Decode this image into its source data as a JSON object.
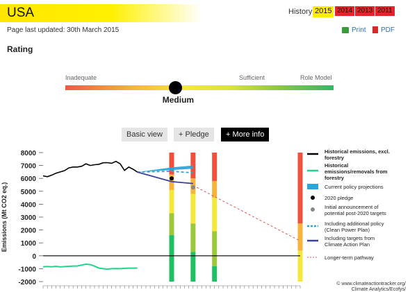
{
  "header": {
    "country": "USA",
    "updated": "Page last updated: 30th March 2015",
    "history_label": "History:",
    "years": [
      "2015",
      "2014",
      "2013",
      "2011"
    ],
    "print_label": "Print",
    "pdf_label": "PDF"
  },
  "rating": {
    "heading": "Rating",
    "scale_labels": [
      "Inadequate",
      "Sufficient",
      "Role Model"
    ],
    "value": "Medium",
    "level_fraction": 0.41
  },
  "buttons": [
    "Basic view",
    "+ Pledge",
    "+ More info"
  ],
  "chart_data": {
    "type": "line",
    "ylabel": "Emissions (Mt CO2 eq.)",
    "ylim": [
      -2000,
      8000
    ],
    "y_ticks": [
      "8000",
      "7000",
      "6000",
      "5000",
      "4000",
      "3000",
      "2000",
      "1000",
      "0",
      "-1000",
      "-2000"
    ],
    "x_range": [
      1990,
      2050
    ],
    "series": [
      {
        "name": "Historical emissions, excl. forestry",
        "color": "#000000",
        "x": [
          1990,
          1991,
          1992,
          1993,
          1994,
          1995,
          1996,
          1997,
          1998,
          1999,
          2000,
          2001,
          2002,
          2003,
          2004,
          2005,
          2006,
          2007,
          2008,
          2009,
          2010,
          2011,
          2012
        ],
        "values": [
          6200,
          6130,
          6250,
          6400,
          6500,
          6600,
          6810,
          6880,
          6880,
          6940,
          7130,
          7000,
          7060,
          7090,
          7210,
          7220,
          7170,
          7320,
          7130,
          6620,
          6880,
          6710,
          6490
        ]
      },
      {
        "name": "Historical emissions/removals from forestry",
        "color": "#1fd58a",
        "x": [
          1990,
          1991,
          1992,
          1993,
          1994,
          1995,
          1996,
          1997,
          1998,
          1999,
          2000,
          2001,
          2002,
          2003,
          2004,
          2005,
          2006,
          2007,
          2008,
          2009,
          2010,
          2011,
          2012
        ],
        "values": [
          -850,
          -830,
          -850,
          -820,
          -860,
          -840,
          -820,
          -800,
          -790,
          -720,
          -650,
          -680,
          -800,
          -950,
          -1000,
          -1030,
          -1000,
          -990,
          -1000,
          -970,
          -960,
          -960,
          -950
        ]
      },
      {
        "name": "Current policy projections",
        "color": "#2aa7d9",
        "x": [
          2012,
          2020,
          2025
        ],
        "upper": [
          6490,
          6850,
          7000
        ],
        "lower": [
          6490,
          6650,
          6750
        ]
      },
      {
        "name": "Including additional policy (Clean Power Plan)",
        "color": "#2aa7d9",
        "x": [
          2012,
          2020,
          2025
        ],
        "values": [
          6490,
          6550,
          6430
        ]
      },
      {
        "name": "Including targets from Climate Action Plan",
        "color": "#3a3fa0",
        "x": [
          2012,
          2020,
          2025
        ],
        "values": [
          6490,
          5750,
          5600
        ]
      },
      {
        "name": "Longer-term pathway",
        "color": "#d9534f",
        "x": [
          2025,
          2050
        ],
        "values": [
          5450,
          1150
        ]
      }
    ],
    "points": [
      {
        "name": "2020 pledge",
        "color": "#000000",
        "x": 2020,
        "y": 6000
      },
      {
        "name": "Initial announcement of potential post-2020 targets",
        "color": "#888888",
        "x": 2025,
        "y": 5300
      }
    ],
    "rating_columns": [
      {
        "x": 2020,
        "bands": [
          {
            "from": 8000,
            "to": 6300,
            "color": "#f0503c"
          },
          {
            "from": 6300,
            "to": 5100,
            "color": "#f7b43a"
          },
          {
            "from": 5100,
            "to": 3300,
            "color": "#f4e93a"
          },
          {
            "from": 3300,
            "to": 1600,
            "color": "#9ec83c"
          },
          {
            "from": 1600,
            "to": -2000,
            "color": "#1fbf63"
          }
        ]
      },
      {
        "x": 2025,
        "bands": [
          {
            "from": 8000,
            "to": 6000,
            "color": "#f0503c"
          },
          {
            "from": 6000,
            "to": 4800,
            "color": "#f7b43a"
          },
          {
            "from": 4800,
            "to": 2500,
            "color": "#f4e93a"
          },
          {
            "from": 2500,
            "to": 300,
            "color": "#9ec83c"
          },
          {
            "from": 300,
            "to": -2000,
            "color": "#1fbf63"
          }
        ]
      },
      {
        "x": 2030,
        "bands": [
          {
            "from": 8000,
            "to": 5800,
            "color": "#f0503c"
          },
          {
            "from": 5800,
            "to": 4500,
            "color": "#f7b43a"
          },
          {
            "from": 4500,
            "to": 1900,
            "color": "#f4e93a"
          },
          {
            "from": 1900,
            "to": -800,
            "color": "#9ec83c"
          },
          {
            "from": -800,
            "to": -2000,
            "color": "#1fbf63"
          }
        ]
      },
      {
        "x": 2050,
        "bands": [
          {
            "from": 8000,
            "to": 2500,
            "color": "#f0503c"
          },
          {
            "from": 2500,
            "to": 400,
            "color": "#f7b43a"
          },
          {
            "from": 400,
            "to": -2000,
            "color": "#f4e93a"
          }
        ]
      }
    ],
    "legend": [
      {
        "label": "Historical emissions, excl. forestry",
        "style": "line-black",
        "color": "#000000",
        "bold": true
      },
      {
        "label": "Historical emissions/removals from forestry",
        "style": "line-green",
        "color": "#1fd58a",
        "bold": true
      },
      {
        "label": "Current policy projections",
        "style": "box",
        "color": "#2aa7d9",
        "bold": false
      },
      {
        "label": "2020 pledge",
        "style": "dot",
        "color": "#000000",
        "bold": false
      },
      {
        "label": "Initial announcement of potential post-2020 targets",
        "style": "dot",
        "color": "#888888",
        "bold": false
      },
      {
        "label": "Including additional policy (Clean Power Plan)",
        "style": "dash",
        "color": "#2aa7d9",
        "bold": false
      },
      {
        "label": "Including targets from Climate Action Plan",
        "style": "line-navy",
        "color": "#3a3fa0",
        "bold": false
      },
      {
        "label": "Longer-term pathway",
        "style": "dash-red",
        "color": "#d9534f",
        "bold": false
      }
    ],
    "legend_placement": "right",
    "source": "© www.climateactiontracker.org/ Climate Analytics/Ecofys/",
    "grid": false
  }
}
